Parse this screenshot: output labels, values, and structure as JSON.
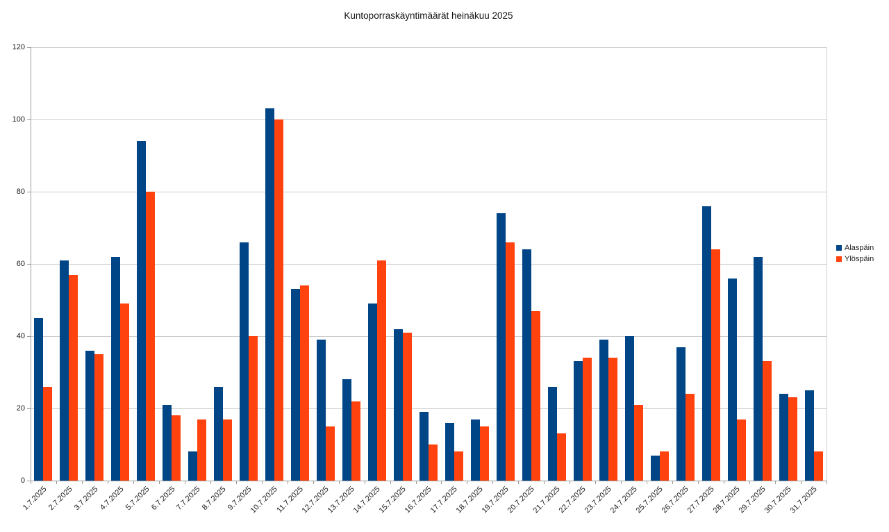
{
  "title": "Kuntoporraskäyntimäärät heinäkuu 2025",
  "chart_data": {
    "type": "bar",
    "title": "Kuntoporraskäyntimäärät heinäkuu 2025",
    "categories": [
      "1.7.2025",
      "2.7.2025",
      "3.7.2025",
      "4.7.2025",
      "5.7.2025",
      "6.7.2025",
      "7.7.2025",
      "8.7.2025",
      "9.7.2025",
      "10.7.2025",
      "11.7.2025",
      "12.7.2025",
      "13.7.2025",
      "14.7.2025",
      "15.7.2025",
      "16.7.2025",
      "17.7.2025",
      "18.7.2025",
      "19.7.2025",
      "20.7.2025",
      "21.7.2025",
      "22.7.2025",
      "23.7.2025",
      "24.7.2025",
      "25.7.2025",
      "26.7.2025",
      "27.7.2025",
      "28.7.2025",
      "29.7.2025",
      "30.7.2025",
      "31.7.2025"
    ],
    "series": [
      {
        "name": "Alaspäin",
        "color": "#004586",
        "values": [
          45,
          61,
          36,
          62,
          94,
          21,
          8,
          26,
          66,
          103,
          53,
          39,
          28,
          49,
          42,
          19,
          16,
          17,
          74,
          64,
          26,
          33,
          39,
          40,
          7,
          37,
          76,
          56,
          62,
          24,
          25
        ]
      },
      {
        "name": "Ylöspäin",
        "color": "#FF420E",
        "values": [
          26,
          57,
          35,
          49,
          80,
          18,
          17,
          17,
          40,
          100,
          54,
          15,
          22,
          61,
          41,
          10,
          8,
          15,
          66,
          47,
          13,
          34,
          34,
          21,
          8,
          24,
          64,
          17,
          33,
          23,
          8
        ]
      }
    ],
    "xlabel": "",
    "ylabel": "",
    "ylim": [
      0,
      120
    ],
    "yticks": [
      0,
      20,
      40,
      60,
      80,
      100,
      120
    ],
    "grid": true,
    "legend_position": "right",
    "background": "#ffffff",
    "gridline_color": "#cdcdcd",
    "axis_color": "#9a9a9a"
  }
}
